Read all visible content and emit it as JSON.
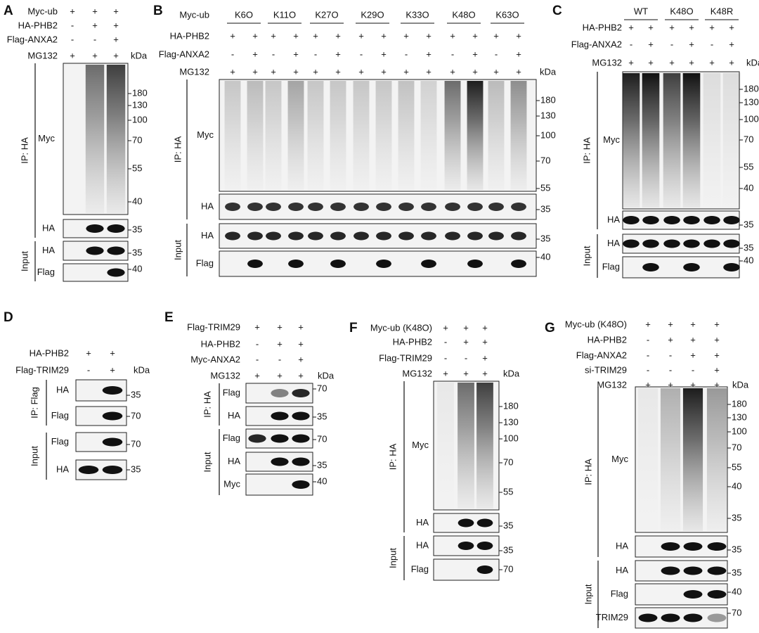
{
  "panels": [
    {
      "letter": "A",
      "treatments": [
        {
          "label": "Myc-ub",
          "signs": [
            "+",
            "+",
            "+"
          ]
        },
        {
          "label": "HA-PHB2",
          "signs": [
            "-",
            "+",
            "+"
          ]
        },
        {
          "label": "Flag-ANXA2",
          "signs": [
            "-",
            "-",
            "+"
          ]
        },
        {
          "label": "MG132",
          "signs": [
            "+",
            "+",
            "+"
          ]
        }
      ],
      "kda": "kDa",
      "sections": [
        {
          "label": "IP: HA",
          "blots": [
            {
              "label": "Myc",
              "markers": [
                "180",
                "130",
                "100",
                "70",
                "55",
                "40"
              ]
            },
            {
              "label": "HA",
              "markers": [
                "35"
              ]
            }
          ]
        },
        {
          "label": "Input",
          "blots": [
            {
              "label": "HA",
              "markers": [
                "35"
              ]
            },
            {
              "label": "Flag",
              "markers": [
                "40"
              ]
            }
          ]
        }
      ]
    },
    {
      "letter": "B",
      "header": {
        "label": "Myc-ub",
        "groups": [
          "K6O",
          "K11O",
          "K27O",
          "K29O",
          "K33O",
          "K48O",
          "K63O"
        ]
      },
      "treatments": [
        {
          "label": "HA-PHB2",
          "signs": [
            "+",
            "+",
            "+",
            "+",
            "+",
            "+",
            "+",
            "+",
            "+",
            "+",
            "+",
            "+",
            "+",
            "+"
          ]
        },
        {
          "label": "Flag-ANXA2",
          "signs": [
            "-",
            "+",
            "-",
            "+",
            "-",
            "+",
            "-",
            "+",
            "-",
            "+",
            "-",
            "+",
            "-",
            "+"
          ]
        },
        {
          "label": "MG132",
          "signs": [
            "+",
            "+",
            "+",
            "+",
            "+",
            "+",
            "+",
            "+",
            "+",
            "+",
            "+",
            "+",
            "+",
            "+"
          ]
        }
      ],
      "kda": "kDa",
      "sections": [
        {
          "label": "IP: HA",
          "blots": [
            {
              "label": "Myc",
              "markers": [
                "180",
                "130",
                "100",
                "70",
                "55"
              ]
            },
            {
              "label": "HA",
              "markers": [
                "35"
              ]
            }
          ]
        },
        {
          "label": "Input",
          "blots": [
            {
              "label": "HA",
              "markers": [
                "35"
              ]
            },
            {
              "label": "Flag",
              "markers": [
                "40"
              ]
            }
          ]
        }
      ]
    },
    {
      "letter": "C",
      "header": {
        "groups": [
          "WT",
          "K48O",
          "K48R"
        ]
      },
      "treatments": [
        {
          "label": "HA-PHB2",
          "signs": [
            "+",
            "+",
            "+",
            "+",
            "+",
            "+"
          ]
        },
        {
          "label": "Flag-ANXA2",
          "signs": [
            "-",
            "+",
            "-",
            "+",
            "-",
            "+"
          ]
        },
        {
          "label": "MG132",
          "signs": [
            "+",
            "+",
            "+",
            "+",
            "+",
            "+"
          ]
        }
      ],
      "kda": "kDa",
      "sections": [
        {
          "label": "IP: HA",
          "blots": [
            {
              "label": "Myc",
              "markers": [
                "180",
                "130",
                "100",
                "70",
                "55",
                "40"
              ]
            },
            {
              "label": "HA",
              "markers": [
                "35"
              ]
            }
          ]
        },
        {
          "label": "Input",
          "blots": [
            {
              "label": "HA",
              "markers": [
                "35"
              ]
            },
            {
              "label": "Flag",
              "markers": [
                "40"
              ]
            }
          ]
        }
      ]
    },
    {
      "letter": "D",
      "treatments": [
        {
          "label": "HA-PHB2",
          "signs": [
            "+",
            "+"
          ]
        },
        {
          "label": "Flag-TRIM29",
          "signs": [
            "-",
            "+"
          ]
        }
      ],
      "kda": "kDa",
      "sections": [
        {
          "label": "IP: Flag",
          "blots": [
            {
              "label": "HA",
              "markers": [
                "35"
              ]
            },
            {
              "label": "Flag",
              "markers": [
                "70"
              ]
            }
          ]
        },
        {
          "label": "Input",
          "blots": [
            {
              "label": "Flag",
              "markers": [
                "70"
              ]
            },
            {
              "label": "HA",
              "markers": [
                "35"
              ]
            }
          ]
        }
      ]
    },
    {
      "letter": "E",
      "treatments": [
        {
          "label": "Flag-TRIM29",
          "signs": [
            "+",
            "+",
            "+"
          ]
        },
        {
          "label": "HA-PHB2",
          "signs": [
            "-",
            "+",
            "+"
          ]
        },
        {
          "label": "Myc-ANXA2",
          "signs": [
            "-",
            "-",
            "+"
          ]
        },
        {
          "label": "MG132",
          "signs": [
            "+",
            "+",
            "+"
          ]
        }
      ],
      "kda": "kDa",
      "sections": [
        {
          "label": "IP: HA",
          "blots": [
            {
              "label": "Flag",
              "markers": [
                "70"
              ]
            },
            {
              "label": "HA",
              "markers": [
                "35"
              ]
            }
          ]
        },
        {
          "label": "Input",
          "blots": [
            {
              "label": "Flag",
              "markers": [
                "70"
              ]
            },
            {
              "label": "HA",
              "markers": [
                "35"
              ]
            },
            {
              "label": "Myc",
              "markers": [
                "40"
              ]
            }
          ]
        }
      ]
    },
    {
      "letter": "F",
      "treatments": [
        {
          "label": "Myc-ub (K48O)",
          "signs": [
            "+",
            "+",
            "+"
          ]
        },
        {
          "label": "HA-PHB2",
          "signs": [
            "-",
            "+",
            "+"
          ]
        },
        {
          "label": "Flag-TRIM29",
          "signs": [
            "-",
            "-",
            "+"
          ]
        },
        {
          "label": "MG132",
          "signs": [
            "+",
            "+",
            "+"
          ]
        }
      ],
      "kda": "kDa",
      "sections": [
        {
          "label": "IP: HA",
          "blots": [
            {
              "label": "Myc",
              "markers": [
                "180",
                "130",
                "100",
                "70",
                "55"
              ]
            },
            {
              "label": "HA",
              "markers": [
                "35"
              ]
            }
          ]
        },
        {
          "label": "Input",
          "blots": [
            {
              "label": "HA",
              "markers": [
                "35"
              ]
            },
            {
              "label": "Flag",
              "markers": [
                "70"
              ]
            }
          ]
        }
      ]
    },
    {
      "letter": "G",
      "treatments": [
        {
          "label": "Myc-ub (K48O)",
          "signs": [
            "+",
            "+",
            "+",
            "+"
          ]
        },
        {
          "label": "HA-PHB2",
          "signs": [
            "-",
            "+",
            "+",
            "+"
          ]
        },
        {
          "label": "Flag-ANXA2",
          "signs": [
            "-",
            "-",
            "+",
            "+"
          ]
        },
        {
          "label": "si-TRIM29",
          "signs": [
            "-",
            "-",
            "-",
            "+"
          ]
        },
        {
          "label": "MG132",
          "signs": [
            "+",
            "+",
            "+",
            "+"
          ]
        }
      ],
      "kda": "kDa",
      "sections": [
        {
          "label": "IP: HA",
          "blots": [
            {
              "label": "Myc",
              "markers": [
                "180",
                "130",
                "100",
                "70",
                "55",
                "40",
                "35"
              ]
            },
            {
              "label": "HA",
              "markers": [
                "35"
              ]
            }
          ]
        },
        {
          "label": "Input",
          "blots": [
            {
              "label": "HA",
              "markers": [
                "35"
              ]
            },
            {
              "label": "Flag",
              "markers": [
                "40"
              ]
            },
            {
              "label": "TRIM29",
              "markers": [
                "70"
              ]
            }
          ]
        }
      ]
    }
  ]
}
